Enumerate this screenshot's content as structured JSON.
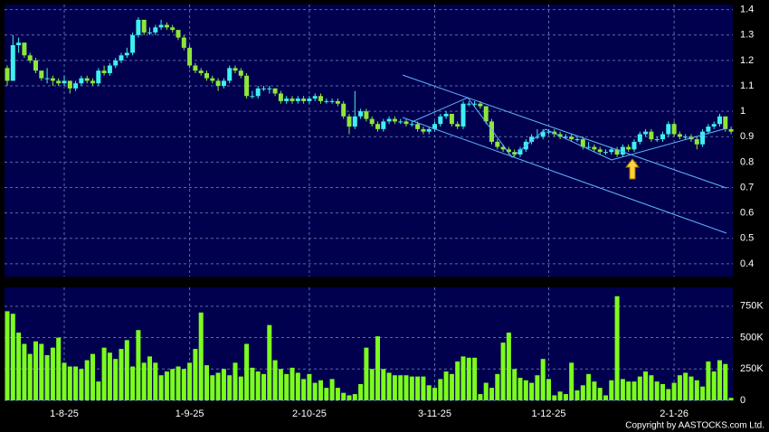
{
  "chart_data": {
    "type": "candlestick",
    "candles": [
      [
        1.17,
        1.18,
        1.1,
        1.12
      ],
      [
        1.12,
        1.3,
        1.12,
        1.26
      ],
      [
        1.26,
        1.29,
        1.23,
        1.27
      ],
      [
        1.27,
        1.27,
        1.21,
        1.22
      ],
      [
        1.22,
        1.23,
        1.19,
        1.2
      ],
      [
        1.2,
        1.21,
        1.15,
        1.16
      ],
      [
        1.16,
        1.16,
        1.12,
        1.13
      ],
      [
        1.13,
        1.17,
        1.11,
        1.13
      ],
      [
        1.13,
        1.14,
        1.1,
        1.12
      ],
      [
        1.12,
        1.13,
        1.1,
        1.11
      ],
      [
        1.11,
        1.14,
        1.1,
        1.12
      ],
      [
        1.12,
        1.12,
        1.07,
        1.09
      ],
      [
        1.09,
        1.12,
        1.08,
        1.11
      ],
      [
        1.11,
        1.14,
        1.1,
        1.13
      ],
      [
        1.13,
        1.14,
        1.11,
        1.12
      ],
      [
        1.12,
        1.13,
        1.1,
        1.11
      ],
      [
        1.11,
        1.17,
        1.1,
        1.16
      ],
      [
        1.16,
        1.18,
        1.14,
        1.15
      ],
      [
        1.15,
        1.19,
        1.14,
        1.18
      ],
      [
        1.18,
        1.21,
        1.17,
        1.2
      ],
      [
        1.2,
        1.23,
        1.19,
        1.22
      ],
      [
        1.22,
        1.25,
        1.21,
        1.23
      ],
      [
        1.23,
        1.31,
        1.22,
        1.3
      ],
      [
        1.3,
        1.37,
        1.29,
        1.36
      ],
      [
        1.36,
        1.36,
        1.3,
        1.31
      ],
      [
        1.31,
        1.33,
        1.3,
        1.31
      ],
      [
        1.31,
        1.34,
        1.3,
        1.33
      ],
      [
        1.33,
        1.36,
        1.32,
        1.34
      ],
      [
        1.34,
        1.35,
        1.32,
        1.33
      ],
      [
        1.33,
        1.34,
        1.31,
        1.32
      ],
      [
        1.32,
        1.32,
        1.28,
        1.29
      ],
      [
        1.29,
        1.3,
        1.24,
        1.25
      ],
      [
        1.25,
        1.26,
        1.17,
        1.18
      ],
      [
        1.18,
        1.19,
        1.15,
        1.16
      ],
      [
        1.16,
        1.17,
        1.14,
        1.15
      ],
      [
        1.15,
        1.16,
        1.12,
        1.13
      ],
      [
        1.13,
        1.14,
        1.11,
        1.12
      ],
      [
        1.12,
        1.13,
        1.08,
        1.1
      ],
      [
        1.1,
        1.13,
        1.09,
        1.12
      ],
      [
        1.12,
        1.18,
        1.11,
        1.17
      ],
      [
        1.17,
        1.18,
        1.15,
        1.16
      ],
      [
        1.16,
        1.17,
        1.13,
        1.14
      ],
      [
        1.14,
        1.15,
        1.05,
        1.06
      ],
      [
        1.06,
        1.08,
        1.05,
        1.06
      ],
      [
        1.06,
        1.1,
        1.05,
        1.09
      ],
      [
        1.09,
        1.1,
        1.08,
        1.09
      ],
      [
        1.09,
        1.1,
        1.07,
        1.09
      ],
      [
        1.09,
        1.09,
        1.06,
        1.07
      ],
      [
        1.07,
        1.08,
        1.03,
        1.04
      ],
      [
        1.04,
        1.06,
        1.03,
        1.05
      ],
      [
        1.05,
        1.06,
        1.03,
        1.04
      ],
      [
        1.04,
        1.06,
        1.03,
        1.05
      ],
      [
        1.05,
        1.06,
        1.03,
        1.04
      ],
      [
        1.04,
        1.06,
        1.03,
        1.05
      ],
      [
        1.05,
        1.07,
        1.04,
        1.06
      ],
      [
        1.06,
        1.07,
        1.03,
        1.04
      ],
      [
        1.04,
        1.05,
        1.03,
        1.04
      ],
      [
        1.04,
        1.05,
        1.03,
        1.04
      ],
      [
        1.04,
        1.05,
        1.02,
        1.03
      ],
      [
        1.03,
        1.04,
        0.97,
        0.98
      ],
      [
        0.98,
        0.99,
        0.91,
        0.94
      ],
      [
        0.94,
        1.08,
        0.93,
        0.98
      ],
      [
        0.98,
        1.01,
        0.97,
        1.0
      ],
      [
        1.0,
        1.01,
        0.96,
        0.97
      ],
      [
        0.97,
        0.98,
        0.94,
        0.95
      ],
      [
        0.95,
        0.96,
        0.92,
        0.93
      ],
      [
        0.93,
        0.97,
        0.92,
        0.96
      ],
      [
        0.96,
        0.98,
        0.95,
        0.97
      ],
      [
        0.97,
        0.98,
        0.95,
        0.96
      ],
      [
        0.96,
        0.97,
        0.95,
        0.96
      ],
      [
        0.96,
        0.97,
        0.94,
        0.95
      ],
      [
        0.95,
        0.96,
        0.94,
        0.95
      ],
      [
        0.95,
        0.96,
        0.92,
        0.93
      ],
      [
        0.93,
        0.94,
        0.91,
        0.92
      ],
      [
        0.92,
        0.94,
        0.91,
        0.93
      ],
      [
        0.93,
        0.96,
        0.92,
        0.95
      ],
      [
        0.95,
        0.99,
        0.94,
        0.98
      ],
      [
        0.98,
        1.0,
        0.97,
        0.99
      ],
      [
        0.99,
        0.99,
        0.94,
        0.95
      ],
      [
        0.95,
        0.96,
        0.93,
        0.94
      ],
      [
        0.94,
        1.04,
        0.93,
        1.03
      ],
      [
        1.03,
        1.04,
        1.02,
        1.03
      ],
      [
        1.03,
        1.04,
        1.02,
        1.03
      ],
      [
        1.03,
        1.04,
        1.01,
        1.02
      ],
      [
        1.02,
        1.02,
        0.95,
        0.96
      ],
      [
        0.96,
        0.97,
        0.87,
        0.88
      ],
      [
        0.88,
        0.89,
        0.85,
        0.86
      ],
      [
        0.86,
        0.87,
        0.84,
        0.85
      ],
      [
        0.85,
        0.86,
        0.83,
        0.84
      ],
      [
        0.84,
        0.85,
        0.82,
        0.83
      ],
      [
        0.83,
        0.86,
        0.82,
        0.85
      ],
      [
        0.85,
        0.89,
        0.84,
        0.88
      ],
      [
        0.88,
        0.91,
        0.87,
        0.9
      ],
      [
        0.9,
        0.93,
        0.89,
        0.9
      ],
      [
        0.9,
        0.93,
        0.89,
        0.92
      ],
      [
        0.92,
        0.93,
        0.91,
        0.92
      ],
      [
        0.92,
        0.93,
        0.9,
        0.91
      ],
      [
        0.91,
        0.92,
        0.89,
        0.9
      ],
      [
        0.9,
        0.91,
        0.89,
        0.9
      ],
      [
        0.9,
        0.91,
        0.88,
        0.89
      ],
      [
        0.89,
        0.9,
        0.88,
        0.89
      ],
      [
        0.89,
        0.9,
        0.85,
        0.86
      ],
      [
        0.86,
        0.88,
        0.85,
        0.86
      ],
      [
        0.86,
        0.87,
        0.84,
        0.85
      ],
      [
        0.85,
        0.86,
        0.83,
        0.84
      ],
      [
        0.84,
        0.85,
        0.83,
        0.84
      ],
      [
        0.84,
        0.86,
        0.83,
        0.85
      ],
      [
        0.85,
        0.86,
        0.82,
        0.83
      ],
      [
        0.83,
        0.87,
        0.82,
        0.86
      ],
      [
        0.86,
        0.87,
        0.84,
        0.85
      ],
      [
        0.85,
        0.89,
        0.84,
        0.88
      ],
      [
        0.88,
        0.92,
        0.87,
        0.91
      ],
      [
        0.91,
        0.93,
        0.9,
        0.92
      ],
      [
        0.92,
        0.93,
        0.88,
        0.89
      ],
      [
        0.89,
        0.9,
        0.88,
        0.89
      ],
      [
        0.89,
        0.92,
        0.88,
        0.91
      ],
      [
        0.91,
        0.96,
        0.9,
        0.95
      ],
      [
        0.95,
        0.96,
        0.9,
        0.91
      ],
      [
        0.91,
        0.92,
        0.89,
        0.9
      ],
      [
        0.9,
        0.91,
        0.89,
        0.9
      ],
      [
        0.9,
        0.91,
        0.88,
        0.89
      ],
      [
        0.89,
        0.9,
        0.85,
        0.87
      ],
      [
        0.87,
        0.93,
        0.86,
        0.92
      ],
      [
        0.92,
        0.95,
        0.91,
        0.94
      ],
      [
        0.94,
        0.96,
        0.93,
        0.95
      ],
      [
        0.95,
        0.99,
        0.94,
        0.98
      ],
      [
        0.98,
        0.98,
        0.92,
        0.93
      ],
      [
        0.93,
        0.94,
        0.91,
        0.92
      ]
    ],
    "volumes": [
      710000,
      690000,
      540000,
      450000,
      370000,
      470000,
      450000,
      360000,
      420000,
      500000,
      300000,
      270000,
      270000,
      250000,
      320000,
      370000,
      150000,
      420000,
      380000,
      330000,
      410000,
      480000,
      270000,
      560000,
      300000,
      350000,
      300000,
      200000,
      230000,
      250000,
      270000,
      250000,
      300000,
      410000,
      700000,
      280000,
      200000,
      220000,
      250000,
      200000,
      300000,
      190000,
      450000,
      260000,
      230000,
      210000,
      600000,
      320000,
      250000,
      210000,
      260000,
      220000,
      170000,
      210000,
      140000,
      160000,
      100000,
      170000,
      100000,
      60000,
      40000,
      50000,
      130000,
      420000,
      250000,
      510000,
      250000,
      220000,
      200000,
      200000,
      200000,
      190000,
      190000,
      190000,
      120000,
      100000,
      170000,
      230000,
      210000,
      310000,
      350000,
      340000,
      340000,
      50000,
      140000,
      100000,
      210000,
      460000,
      540000,
      250000,
      180000,
      160000,
      140000,
      200000,
      330000,
      170000,
      40000,
      70000,
      50000,
      300000,
      80000,
      120000,
      210000,
      150000,
      100000,
      40000,
      160000,
      830000,
      170000,
      150000,
      150000,
      190000,
      230000,
      200000,
      150000,
      130000,
      90000,
      140000,
      200000,
      220000,
      190000,
      160000,
      110000,
      310000,
      230000,
      320000,
      290000,
      20000
    ],
    "up_color": "#3ef0f0",
    "down_color": "#8ee63a",
    "volume_color": "#7cfc1c",
    "ylim": [
      0.35,
      1.42
    ],
    "yticks": [
      0.4,
      0.5,
      0.6,
      0.7,
      0.8,
      0.9,
      1,
      1.1,
      1.2,
      1.3,
      1.4
    ],
    "y2lim": [
      0,
      900000
    ],
    "y2ticks": [
      {
        "value": 0,
        "label": "0"
      },
      {
        "value": 250000,
        "label": "250K"
      },
      {
        "value": 500000,
        "label": "500K"
      },
      {
        "value": 750000,
        "label": "750K"
      }
    ],
    "xticks": [
      {
        "value": 10,
        "label": "1-8-25"
      },
      {
        "value": 32,
        "label": "1-9-25"
      },
      {
        "value": 53,
        "label": "2-10-25"
      },
      {
        "value": 75,
        "label": "3-11-25"
      },
      {
        "value": 95,
        "label": "1-12-25"
      },
      {
        "value": 117,
        "label": "2-1-26"
      }
    ],
    "grid": true,
    "copyright": "Copyright by AASTOCKS.com Ltd."
  }
}
